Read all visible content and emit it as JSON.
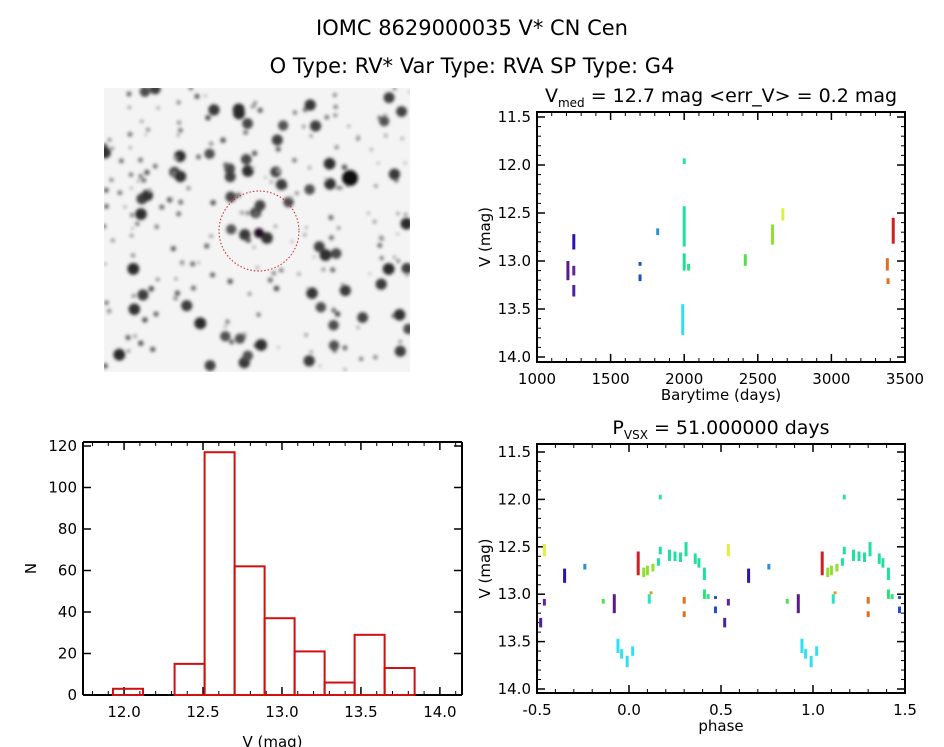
{
  "header": {
    "title": "IOMC 8629000035    V* CN Cen",
    "subtitle": "O Type: RV*  Var Type: RVA  SP Type: G4"
  },
  "chart_data": [
    {
      "id": "lightcurve",
      "type": "scatter",
      "title_main": "V",
      "title_sub": "med",
      "title_rest": " = 12.7 mag <err_V> = 0.2 mag",
      "xlabel": "Barytime (days)",
      "ylabel": "V (mag)",
      "xlim": [
        1000,
        3500
      ],
      "ylim": [
        11.5,
        14.0
      ],
      "y_inverted": true,
      "xticks": [
        "1000",
        "1500",
        "2000",
        "2500",
        "3000",
        "3500"
      ],
      "yticks": [
        "11.5",
        "12.0",
        "12.5",
        "13.0",
        "13.5",
        "14.0"
      ],
      "clusters": [
        {
          "t": 1210,
          "vmin": 13.0,
          "vmax": 13.2,
          "color": "#5a1a8a"
        },
        {
          "t": 1250,
          "vmin": 12.72,
          "vmax": 12.88,
          "color": "#3010b0"
        },
        {
          "t": 1250,
          "vmin": 13.05,
          "vmax": 13.15,
          "color": "#6020a0"
        },
        {
          "t": 1250,
          "vmin": 13.25,
          "vmax": 13.37,
          "color": "#5020a0"
        },
        {
          "t": 1700,
          "vmin": 13.01,
          "vmax": 13.05,
          "color": "#2050c0"
        },
        {
          "t": 1700,
          "vmin": 13.14,
          "vmax": 13.21,
          "color": "#2050c0"
        },
        {
          "t": 1820,
          "vmin": 12.66,
          "vmax": 12.73,
          "color": "#3090d0"
        },
        {
          "t": 1990,
          "vmin": 13.45,
          "vmax": 13.77,
          "color": "#30e0f0"
        },
        {
          "t": 2000,
          "vmin": 11.93,
          "vmax": 11.99,
          "color": "#30e0a0"
        },
        {
          "t": 2000,
          "vmin": 12.43,
          "vmax": 12.85,
          "color": "#20e0a0"
        },
        {
          "t": 2000,
          "vmin": 12.92,
          "vmax": 13.1,
          "color": "#20e090"
        },
        {
          "t": 2030,
          "vmin": 13.03,
          "vmax": 13.1,
          "color": "#30e080"
        },
        {
          "t": 2415,
          "vmin": 12.93,
          "vmax": 13.05,
          "color": "#50e050"
        },
        {
          "t": 2600,
          "vmin": 12.62,
          "vmax": 12.83,
          "color": "#90e030"
        },
        {
          "t": 2670,
          "vmin": 12.45,
          "vmax": 12.58,
          "color": "#e0f040"
        },
        {
          "t": 3380,
          "vmin": 12.97,
          "vmax": 13.1,
          "color": "#e07020"
        },
        {
          "t": 3385,
          "vmin": 13.18,
          "vmax": 13.24,
          "color": "#e07020"
        },
        {
          "t": 3420,
          "vmin": 12.55,
          "vmax": 12.82,
          "color": "#d02020"
        }
      ]
    },
    {
      "id": "histogram",
      "type": "bar",
      "xlabel": "V (mag)",
      "ylabel": "N",
      "xlim": [
        11.74,
        14.14
      ],
      "ylim": [
        0,
        122
      ],
      "xticks": [
        "12.0",
        "12.5",
        "13.0",
        "13.5",
        "14.0"
      ],
      "yticks": [
        "0",
        "20",
        "40",
        "60",
        "80",
        "100",
        "120"
      ],
      "bin_edges": [
        11.93,
        12.12,
        12.32,
        12.51,
        12.7,
        12.89,
        13.08,
        13.27,
        13.46,
        13.65,
        13.84
      ],
      "counts": [
        3,
        0,
        15,
        117,
        62,
        37,
        21,
        6,
        29,
        13
      ],
      "color": "#d01010"
    },
    {
      "id": "phased",
      "type": "scatter",
      "title_main": "P",
      "title_sub": "VSX",
      "title_rest": " = 51.000000 days",
      "xlabel": "phase",
      "ylabel": "V (mag)",
      "xlim": [
        -0.5,
        1.5
      ],
      "ylim": [
        11.5,
        14.0
      ],
      "y_inverted": true,
      "xticks": [
        "-0.5",
        "0.0",
        "0.5",
        "1.0",
        "1.5"
      ],
      "yticks": [
        "11.5",
        "12.0",
        "12.5",
        "13.0",
        "13.5",
        "14.0"
      ],
      "clusters": [
        {
          "p": -0.48,
          "vmin": 13.25,
          "vmax": 13.35,
          "color": "#5020a0"
        },
        {
          "p": -0.46,
          "vmin": 13.05,
          "vmax": 13.12,
          "color": "#6020a0"
        },
        {
          "p": -0.46,
          "vmin": 12.47,
          "vmax": 12.6,
          "color": "#e0f040"
        },
        {
          "p": -0.35,
          "vmin": 12.73,
          "vmax": 12.88,
          "color": "#3010b0"
        },
        {
          "p": -0.24,
          "vmin": 12.68,
          "vmax": 12.74,
          "color": "#3090d0"
        },
        {
          "p": -0.14,
          "vmin": 13.05,
          "vmax": 13.1,
          "color": "#50e050"
        },
        {
          "p": -0.08,
          "vmin": 13.0,
          "vmax": 13.2,
          "color": "#5a1a8a"
        },
        {
          "p": -0.06,
          "vmin": 13.47,
          "vmax": 13.62,
          "color": "#30e0f0"
        },
        {
          "p": -0.04,
          "vmin": 13.58,
          "vmax": 13.68,
          "color": "#30e0f0"
        },
        {
          "p": -0.01,
          "vmin": 13.65,
          "vmax": 13.77,
          "color": "#30e0f0"
        },
        {
          "p": 0.02,
          "vmin": 13.55,
          "vmax": 13.65,
          "color": "#30e0f0"
        },
        {
          "p": 0.05,
          "vmin": 12.55,
          "vmax": 12.8,
          "color": "#d02020"
        },
        {
          "p": 0.08,
          "vmin": 12.72,
          "vmax": 12.82,
          "color": "#90e030"
        },
        {
          "p": 0.1,
          "vmin": 12.7,
          "vmax": 12.8,
          "color": "#90e030"
        },
        {
          "p": 0.13,
          "vmin": 12.68,
          "vmax": 12.76,
          "color": "#90e030"
        },
        {
          "p": 0.11,
          "vmin": 13.0,
          "vmax": 13.1,
          "color": "#30e0c0"
        },
        {
          "p": 0.12,
          "vmin": 12.97,
          "vmax": 13.0,
          "color": "#e0a020"
        },
        {
          "p": 0.17,
          "vmin": 11.95,
          "vmax": 12.0,
          "color": "#30e0a0"
        },
        {
          "p": 0.17,
          "vmin": 12.5,
          "vmax": 12.58,
          "color": "#20e0a0"
        },
        {
          "p": 0.16,
          "vmin": 12.62,
          "vmax": 12.7,
          "color": "#20e0a0"
        },
        {
          "p": 0.22,
          "vmin": 12.53,
          "vmax": 12.65,
          "color": "#20e0a0"
        },
        {
          "p": 0.25,
          "vmin": 12.55,
          "vmax": 12.65,
          "color": "#20e0a0"
        },
        {
          "p": 0.28,
          "vmin": 12.56,
          "vmax": 12.66,
          "color": "#20e0a0"
        },
        {
          "p": 0.31,
          "vmin": 12.45,
          "vmax": 12.6,
          "color": "#20e0a0"
        },
        {
          "p": 0.36,
          "vmin": 12.57,
          "vmax": 12.68,
          "color": "#20e0a0"
        },
        {
          "p": 0.38,
          "vmin": 12.62,
          "vmax": 12.72,
          "color": "#20e0a0"
        },
        {
          "p": 0.41,
          "vmin": 12.72,
          "vmax": 12.85,
          "color": "#20e0a0"
        },
        {
          "p": 0.41,
          "vmin": 12.95,
          "vmax": 13.05,
          "color": "#30e080"
        },
        {
          "p": 0.43,
          "vmin": 13.0,
          "vmax": 13.05,
          "color": "#30e080"
        },
        {
          "p": 0.3,
          "vmin": 13.03,
          "vmax": 13.1,
          "color": "#e07020"
        },
        {
          "p": 0.3,
          "vmin": 13.18,
          "vmax": 13.24,
          "color": "#e07020"
        },
        {
          "p": 0.47,
          "vmin": 13.02,
          "vmax": 13.05,
          "color": "#2050c0"
        },
        {
          "p": 0.47,
          "vmin": 13.13,
          "vmax": 13.2,
          "color": "#2050c0"
        }
      ]
    }
  ],
  "finder_image": {
    "target_circle_color": "#d02020"
  }
}
